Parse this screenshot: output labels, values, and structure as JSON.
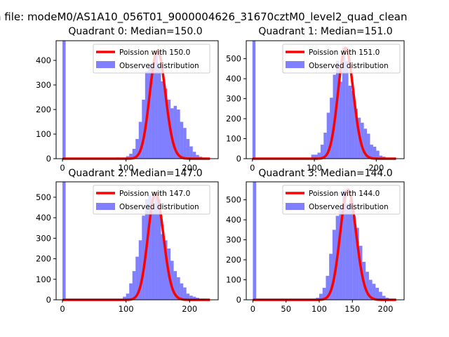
{
  "figure": {
    "suptitle": "n file: modeM0/AS1A10_056T01_9000004626_31670cztM0_level2_quad_clean"
  },
  "chart_data": [
    {
      "type": "bar",
      "title": "Quadrant 0: Median=150.0",
      "xlim": [
        -10,
        245
      ],
      "ylim": [
        0,
        480
      ],
      "xticks": [
        0,
        100,
        200
      ],
      "yticks": [
        0,
        100,
        200,
        300,
        400
      ],
      "legend_location": "top-right",
      "legend": [
        "Poission with 150.0",
        "Observed distribution"
      ],
      "bar_color": "#0000ff",
      "line_color": "#ff0000",
      "median": 150.0,
      "lambda": 150,
      "bin_width": 5,
      "bins": [
        [
          0,
          480
        ],
        [
          85,
          5
        ],
        [
          90,
          3
        ],
        [
          95,
          3
        ],
        [
          100,
          10
        ],
        [
          105,
          20
        ],
        [
          110,
          40
        ],
        [
          115,
          80
        ],
        [
          120,
          150
        ],
        [
          125,
          240
        ],
        [
          130,
          355
        ],
        [
          135,
          385
        ],
        [
          140,
          375
        ],
        [
          145,
          440
        ],
        [
          150,
          380
        ],
        [
          155,
          315
        ],
        [
          160,
          285
        ],
        [
          165,
          240
        ],
        [
          170,
          205
        ],
        [
          175,
          215
        ],
        [
          180,
          200
        ],
        [
          185,
          150
        ],
        [
          190,
          125
        ],
        [
          195,
          80
        ],
        [
          200,
          50
        ],
        [
          205,
          28
        ],
        [
          210,
          15
        ],
        [
          215,
          8
        ],
        [
          220,
          3
        ]
      ]
    },
    {
      "type": "bar",
      "title": "Quadrant 1: Median=151.0",
      "xlim": [
        -10,
        245
      ],
      "ylim": [
        0,
        590
      ],
      "xticks": [
        0,
        100,
        200
      ],
      "yticks": [
        0,
        100,
        200,
        300,
        400,
        500
      ],
      "legend_location": "top-right",
      "legend": [
        "Poission with 151.0",
        "Observed distribution"
      ],
      "bar_color": "#0000ff",
      "line_color": "#ff0000",
      "median": 151.0,
      "lambda": 151,
      "bin_width": 5,
      "bins": [
        [
          0,
          590
        ],
        [
          80,
          5
        ],
        [
          85,
          5
        ],
        [
          90,
          5
        ],
        [
          95,
          20
        ],
        [
          100,
          20
        ],
        [
          105,
          30
        ],
        [
          110,
          70
        ],
        [
          115,
          130
        ],
        [
          120,
          230
        ],
        [
          125,
          305
        ],
        [
          130,
          420
        ],
        [
          135,
          490
        ],
        [
          140,
          385
        ],
        [
          145,
          555
        ],
        [
          150,
          490
        ],
        [
          155,
          365
        ],
        [
          160,
          340
        ],
        [
          165,
          250
        ],
        [
          170,
          205
        ],
        [
          175,
          180
        ],
        [
          180,
          150
        ],
        [
          185,
          125
        ],
        [
          190,
          70
        ],
        [
          195,
          60
        ],
        [
          200,
          40
        ],
        [
          205,
          15
        ],
        [
          210,
          10
        ],
        [
          215,
          5
        ]
      ]
    },
    {
      "type": "bar",
      "title": "Quadrant 2: Median=147.0",
      "xlim": [
        -10,
        245
      ],
      "ylim": [
        0,
        575
      ],
      "xticks": [
        0,
        100,
        200
      ],
      "yticks": [
        0,
        100,
        200,
        300,
        400,
        500
      ],
      "legend_location": "top-right",
      "legend": [
        "Poission with 147.0",
        "Observed distribution"
      ],
      "bar_color": "#0000ff",
      "line_color": "#ff0000",
      "median": 147.0,
      "lambda": 147,
      "bin_width": 5,
      "bins": [
        [
          0,
          575
        ],
        [
          85,
          3
        ],
        [
          90,
          3
        ],
        [
          95,
          15
        ],
        [
          100,
          30
        ],
        [
          105,
          80
        ],
        [
          110,
          140
        ],
        [
          115,
          210
        ],
        [
          120,
          290
        ],
        [
          125,
          410
        ],
        [
          130,
          490
        ],
        [
          135,
          510
        ],
        [
          140,
          450
        ],
        [
          145,
          520
        ],
        [
          150,
          490
        ],
        [
          155,
          320
        ],
        [
          160,
          290
        ],
        [
          165,
          250
        ],
        [
          170,
          190
        ],
        [
          175,
          140
        ],
        [
          180,
          110
        ],
        [
          185,
          80
        ],
        [
          190,
          60
        ],
        [
          195,
          30
        ],
        [
          200,
          20
        ],
        [
          205,
          15
        ],
        [
          210,
          10
        ],
        [
          215,
          5
        ]
      ]
    },
    {
      "type": "bar",
      "title": "Quadrant 3: Median=144.0",
      "xlim": [
        -10,
        228
      ],
      "ylim": [
        0,
        590
      ],
      "xticks": [
        0,
        50,
        100,
        150,
        200
      ],
      "yticks": [
        0,
        100,
        200,
        300,
        400,
        500
      ],
      "legend_location": "top-right",
      "legend": [
        "Poission with 144.0",
        "Observed distribution"
      ],
      "bar_color": "#0000ff",
      "line_color": "#ff0000",
      "median": 144.0,
      "lambda": 144,
      "bin_width": 5,
      "bins": [
        [
          0,
          590
        ],
        [
          85,
          3
        ],
        [
          90,
          3
        ],
        [
          95,
          10
        ],
        [
          100,
          30
        ],
        [
          105,
          60
        ],
        [
          110,
          120
        ],
        [
          115,
          230
        ],
        [
          120,
          350
        ],
        [
          125,
          420
        ],
        [
          130,
          470
        ],
        [
          135,
          550
        ],
        [
          140,
          480
        ],
        [
          145,
          500
        ],
        [
          150,
          420
        ],
        [
          155,
          360
        ],
        [
          160,
          270
        ],
        [
          165,
          190
        ],
        [
          170,
          140
        ],
        [
          175,
          100
        ],
        [
          180,
          80
        ],
        [
          185,
          60
        ],
        [
          190,
          40
        ],
        [
          195,
          20
        ],
        [
          200,
          10
        ],
        [
          205,
          5
        ]
      ]
    }
  ]
}
